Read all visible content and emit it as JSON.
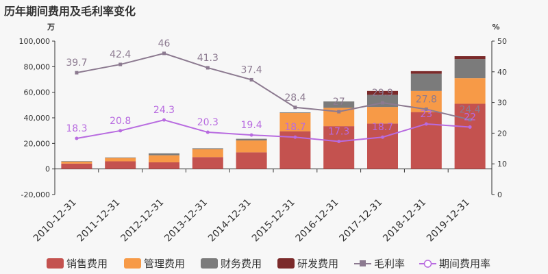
{
  "title": "历年期间费用及毛利率变化",
  "chart_data": {
    "type": "bar",
    "title": "历年期间费用及毛利率变化",
    "left_unit": "万",
    "right_unit": "%",
    "ylim_left": [
      -20000,
      100000
    ],
    "ylim_right": [
      0,
      50
    ],
    "left_ticks": [
      -20000,
      0,
      20000,
      40000,
      60000,
      80000,
      100000
    ],
    "left_tick_labels": [
      "-20,000",
      "0",
      "20,000",
      "40,000",
      "60,000",
      "80,000",
      "100,000"
    ],
    "right_ticks": [
      0,
      10,
      20,
      30,
      40,
      50
    ],
    "right_tick_labels": [
      "0",
      "10",
      "20",
      "30",
      "40",
      "50"
    ],
    "categories": [
      "2010-12-31",
      "2011-12-31",
      "2012-12-31",
      "2013-12-31",
      "2014-12-31",
      "2015-12-31",
      "2016-12-31",
      "2017-12-31",
      "2018-12-31",
      "2019-12-31"
    ],
    "bar_series": [
      {
        "name": "销售费用",
        "color": "#c4524f",
        "values": [
          4200,
          6000,
          5200,
          9300,
          13000,
          29500,
          33500,
          35500,
          44500,
          51000
        ]
      },
      {
        "name": "管理费用",
        "color": "#f79a47",
        "values": [
          1500,
          2600,
          5500,
          6200,
          9300,
          14300,
          14300,
          13000,
          16500,
          20000
        ]
      },
      {
        "name": "财务费用",
        "color": "#7b7b7b",
        "values": [
          400,
          400,
          1500,
          700,
          1300,
          500,
          5000,
          9500,
          13500,
          15000
        ]
      },
      {
        "name": "研发费用",
        "color": "#7b2a2a",
        "values": [
          0,
          0,
          0,
          0,
          0,
          0,
          0,
          3000,
          2000,
          2200
        ]
      }
    ],
    "line_series": [
      {
        "name": "毛利率",
        "color": "#8c7a90",
        "marker": "square",
        "values": [
          39.7,
          42.4,
          46,
          41.3,
          37.4,
          28.4,
          27,
          29.9,
          27.8,
          24.4
        ],
        "labels": [
          "39.7",
          "42.4",
          "46",
          "41.3",
          "37.4",
          "28.4",
          "27",
          "29.9",
          "27.8",
          "24.4"
        ]
      },
      {
        "name": "期间费用率",
        "color": "#b86be0",
        "marker": "circle",
        "values": [
          18.3,
          20.8,
          24.3,
          20.3,
          19.4,
          18.7,
          17.3,
          18.7,
          23,
          22
        ],
        "labels": [
          "18.3",
          "20.8",
          "24.3",
          "20.3",
          "19.4",
          "18.7",
          "17.3",
          "18.7",
          "23",
          "22"
        ]
      }
    ],
    "legend_position": "bottom"
  }
}
